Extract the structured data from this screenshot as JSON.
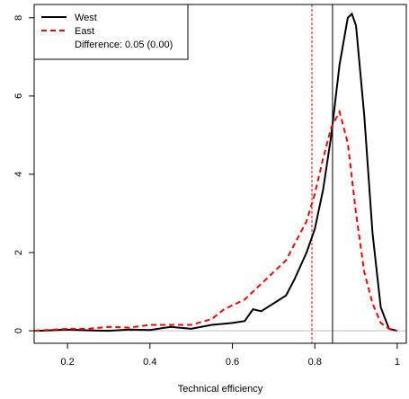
{
  "chart_data": {
    "type": "line",
    "x_label": "Technical efficiency",
    "xlim": [
      0.119,
      1.022
    ],
    "ylim": [
      -0.32,
      8.34
    ],
    "xticks": [
      0.2,
      0.4,
      0.6,
      0.8,
      1.0
    ],
    "yticks": [
      0,
      2,
      4,
      6,
      8
    ],
    "hline": {
      "y": 0,
      "color": "#bebebe"
    },
    "vlines": [
      {
        "x": 0.793,
        "color": "#ff0000",
        "dash": true
      },
      {
        "x": 0.843,
        "color": "#000000",
        "dash": false
      }
    ],
    "legend": "top-left",
    "legend_note": "Difference: 0.05 (0.00)",
    "series": [
      {
        "name": "West",
        "color": "#000000",
        "dash": false,
        "x": [
          0.13,
          0.2,
          0.25,
          0.3,
          0.35,
          0.4,
          0.45,
          0.5,
          0.55,
          0.6,
          0.63,
          0.65,
          0.67,
          0.7,
          0.73,
          0.75,
          0.78,
          0.8,
          0.82,
          0.84,
          0.86,
          0.88,
          0.89,
          0.9,
          0.92,
          0.94,
          0.96,
          0.98,
          1.0
        ],
        "values": [
          0,
          0.03,
          0.01,
          0,
          0.03,
          0.02,
          0.1,
          0.05,
          0.15,
          0.2,
          0.25,
          0.55,
          0.5,
          0.7,
          0.9,
          1.3,
          2.0,
          2.6,
          3.6,
          5.0,
          6.8,
          8.0,
          8.1,
          7.8,
          5.5,
          2.5,
          0.6,
          0.05,
          0
        ]
      },
      {
        "name": "East",
        "color": "#ff0000",
        "dash": true,
        "x": [
          0.12,
          0.2,
          0.25,
          0.3,
          0.35,
          0.4,
          0.45,
          0.5,
          0.55,
          0.58,
          0.6,
          0.63,
          0.65,
          0.68,
          0.7,
          0.73,
          0.75,
          0.78,
          0.8,
          0.82,
          0.84,
          0.86,
          0.88,
          0.9,
          0.92,
          0.94,
          0.96,
          0.98,
          1.0
        ],
        "values": [
          0,
          0.05,
          0.05,
          0.1,
          0.08,
          0.15,
          0.15,
          0.15,
          0.3,
          0.55,
          0.65,
          0.8,
          1.0,
          1.3,
          1.5,
          1.8,
          2.2,
          2.8,
          3.5,
          4.4,
          5.2,
          5.6,
          4.8,
          3.0,
          1.5,
          0.7,
          0.2,
          0.05,
          0
        ]
      }
    ]
  }
}
